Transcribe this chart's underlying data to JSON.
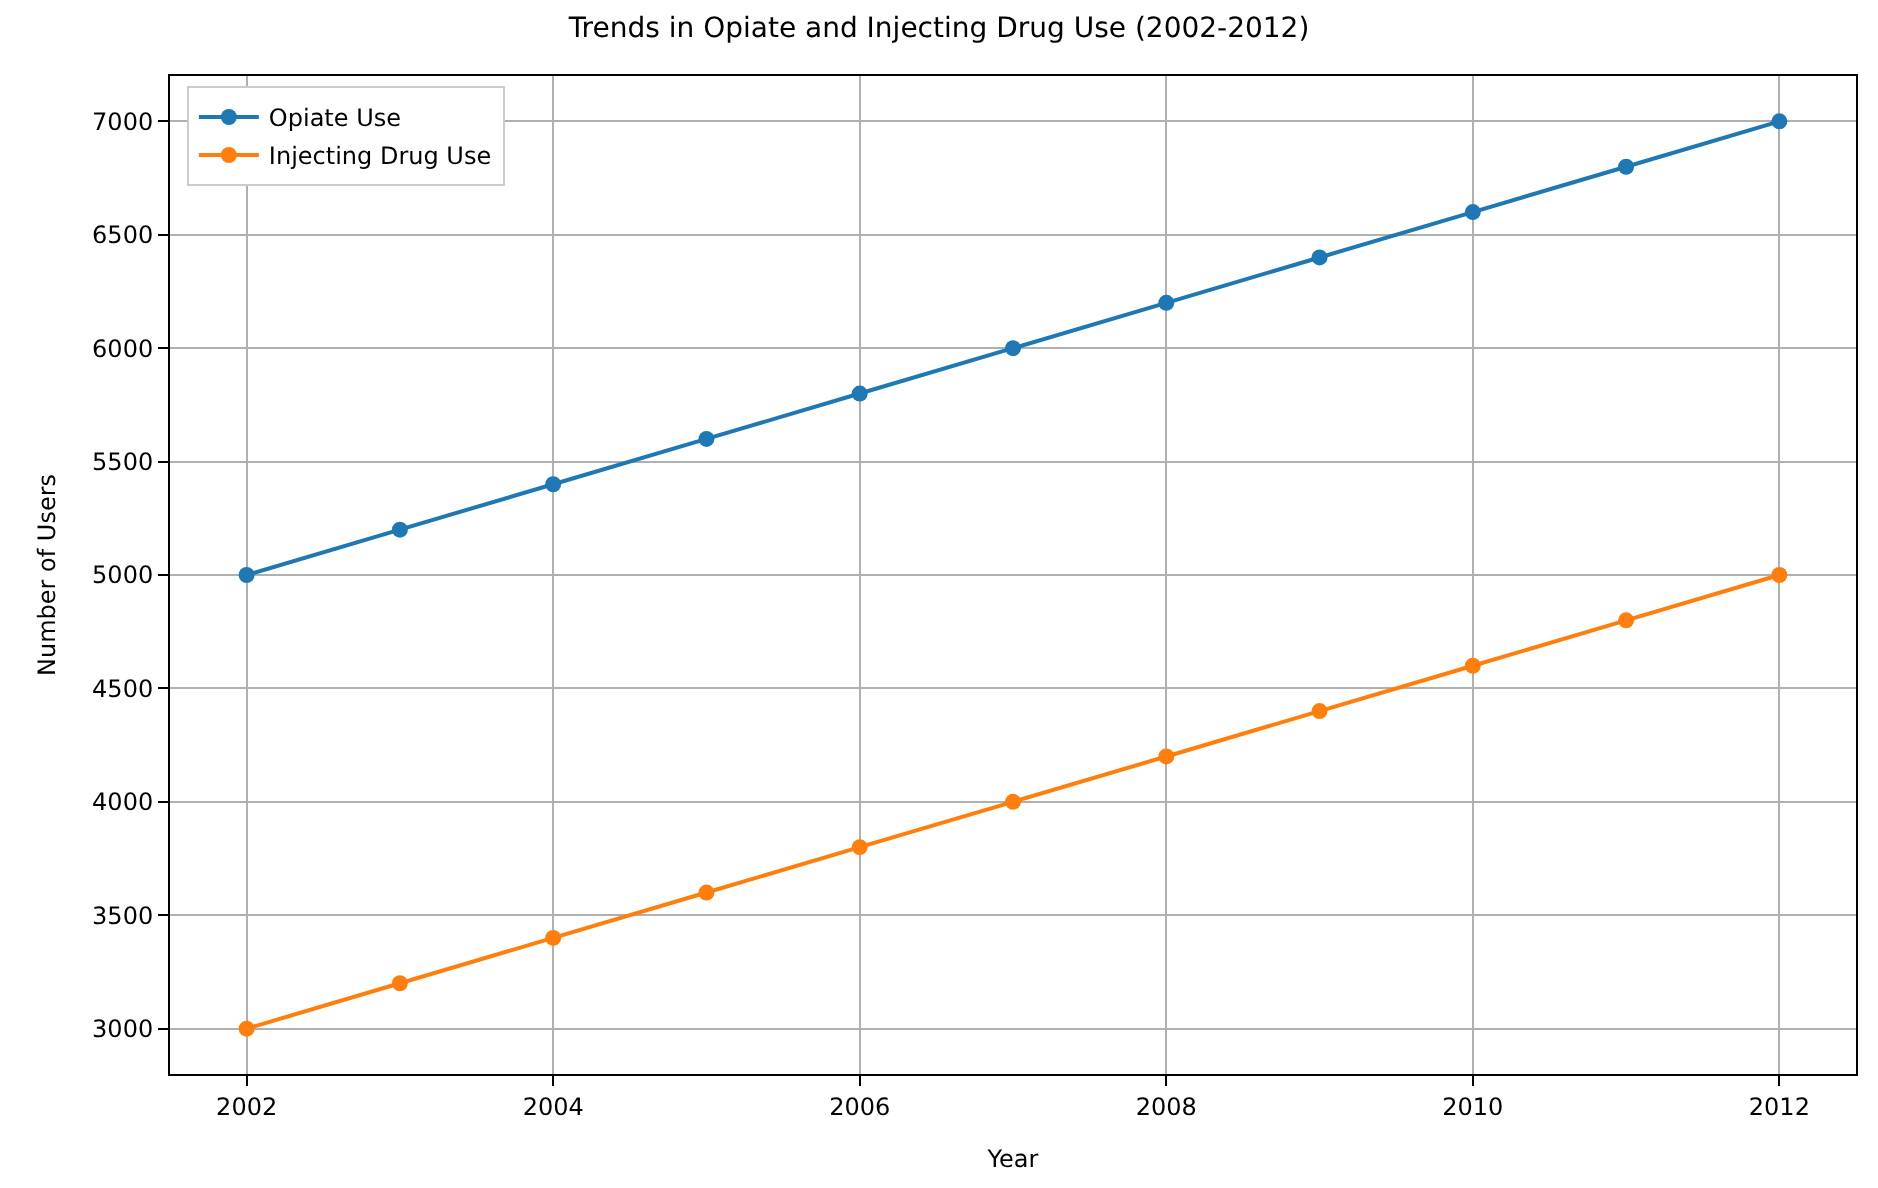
{
  "chart_data": {
    "type": "line",
    "title": "Trends in Opiate and Injecting Drug Use (2002-2012)",
    "xlabel": "Year",
    "ylabel": "Number of Users",
    "x": [
      2002,
      2003,
      2004,
      2005,
      2006,
      2007,
      2008,
      2009,
      2010,
      2011,
      2012
    ],
    "series": [
      {
        "name": "Opiate Use",
        "color": "#1f77b4",
        "values": [
          5000,
          5200,
          5400,
          5600,
          5800,
          6000,
          6200,
          6400,
          6600,
          6800,
          7000
        ]
      },
      {
        "name": "Injecting Drug Use",
        "color": "#ff7f0e",
        "values": [
          3000,
          3200,
          3400,
          3600,
          3800,
          4000,
          4200,
          4400,
          4600,
          4800,
          5000
        ]
      }
    ],
    "xlim": [
      2001.5,
      2012.5
    ],
    "xticks": [
      2002,
      2004,
      2006,
      2008,
      2010,
      2012
    ],
    "ylim": [
      2800,
      7200
    ],
    "yticks": [
      3000,
      3500,
      4000,
      4500,
      5000,
      5500,
      6000,
      6500,
      7000
    ],
    "grid": true,
    "legend": "top left",
    "marker": "circle",
    "line_style": "solid"
  }
}
